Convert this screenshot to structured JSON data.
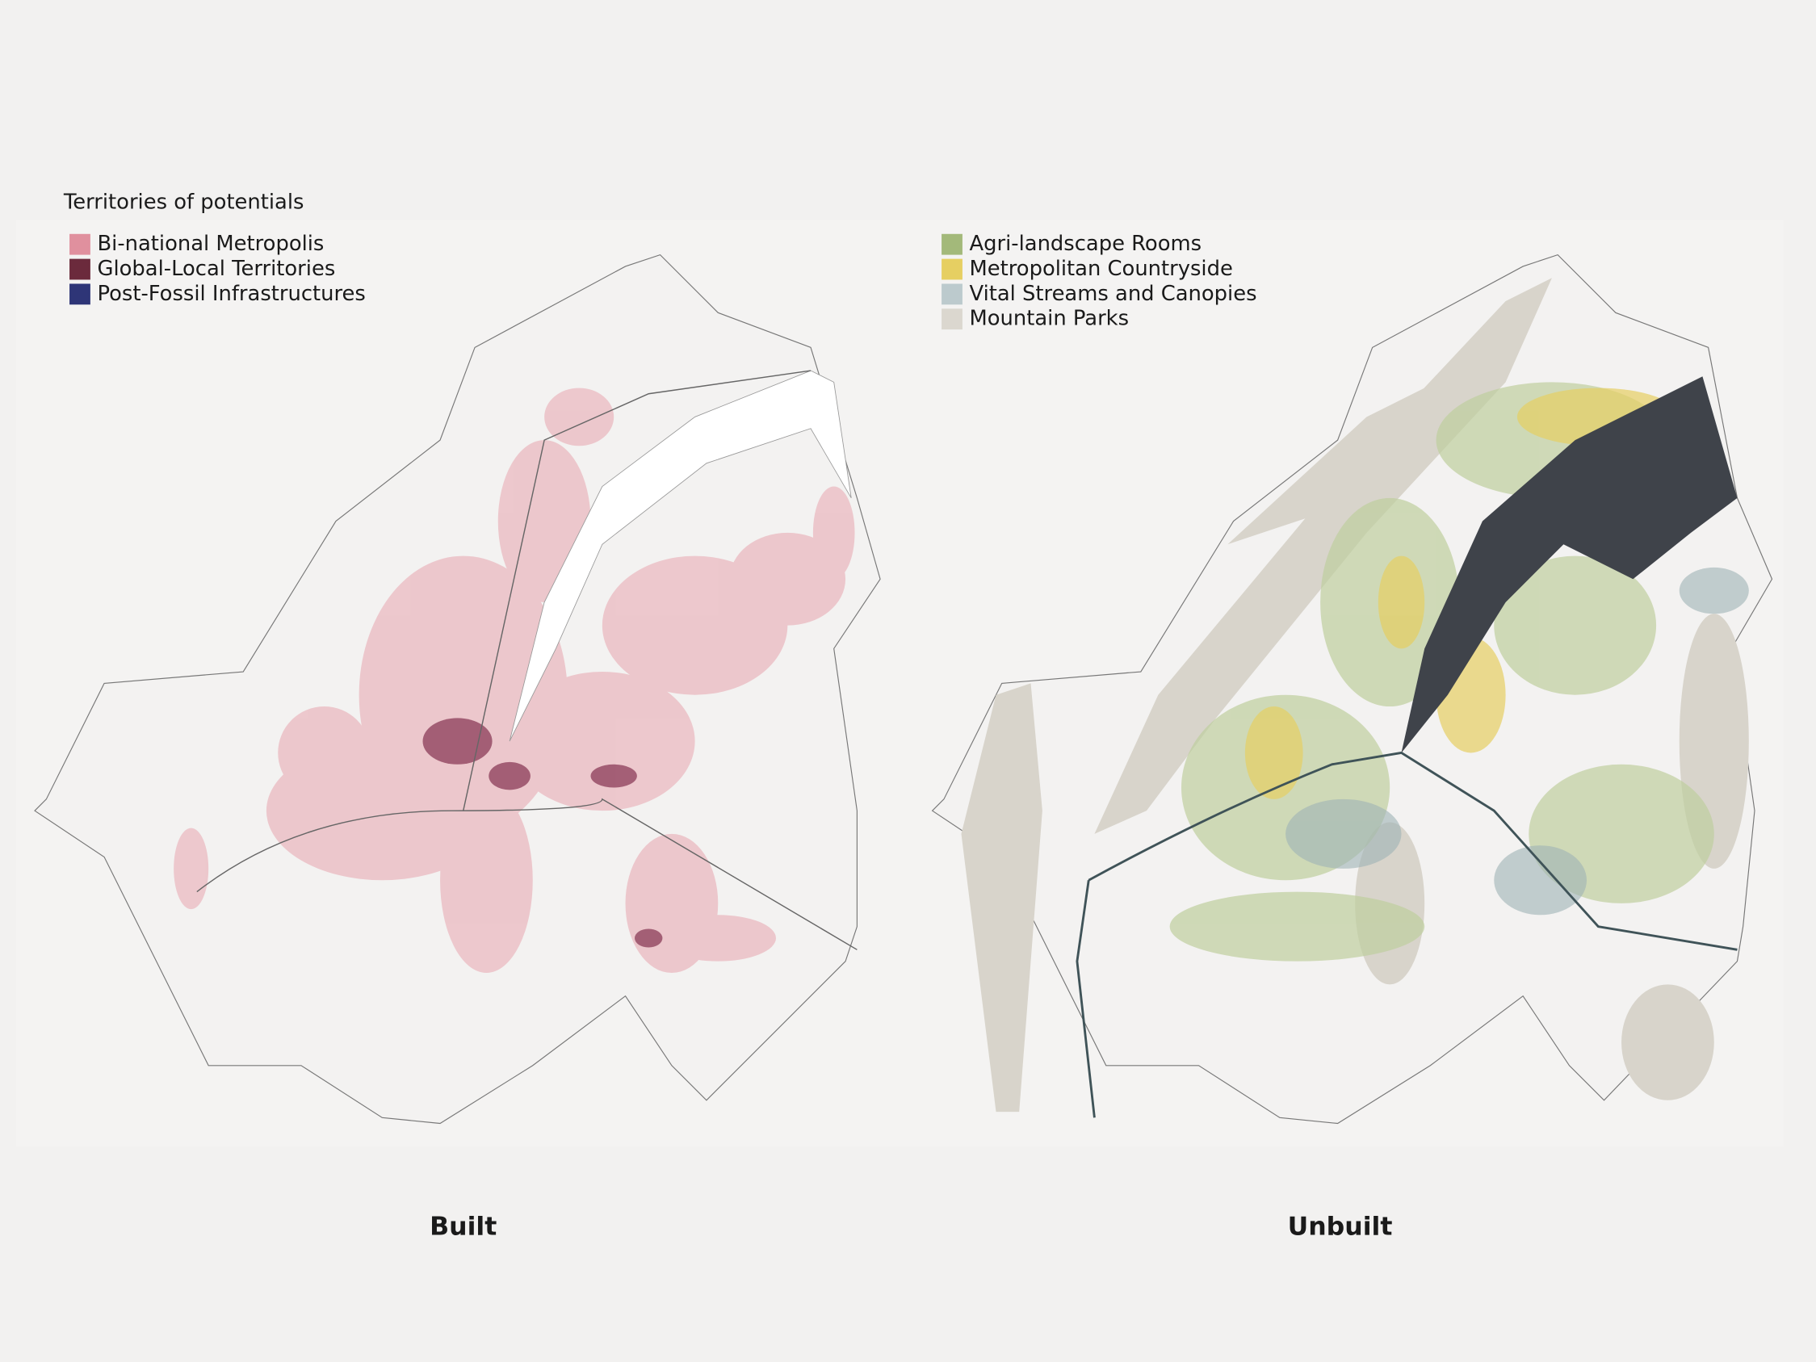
{
  "title": "Territories of potentials",
  "built": {
    "caption": "Built",
    "legend": [
      {
        "label": "Bi-national Metropolis",
        "color": "#e0909e"
      },
      {
        "label": "Global-Local Territories",
        "color": "#6b2a3c"
      },
      {
        "label": "Post-Fossil Infrastructures",
        "color": "#2e3577"
      }
    ]
  },
  "unbuilt": {
    "caption": "Unbuilt",
    "legend": [
      {
        "label": "Agri-landscape Rooms",
        "color": "#a3b97a"
      },
      {
        "label": "Metropolitan Countryside",
        "color": "#e6cf62"
      },
      {
        "label": "Vital Streams and Canopies",
        "color": "#bccacd"
      },
      {
        "label": "Mountain Parks",
        "color": "#dbd7cf"
      }
    ]
  }
}
